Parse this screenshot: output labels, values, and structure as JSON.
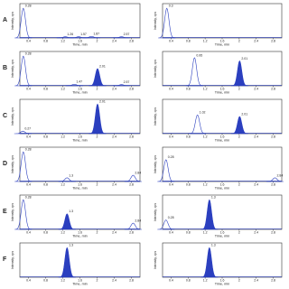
{
  "axis_labels": {
    "x": "Time, min",
    "y": "Intensity, cps"
  },
  "xlim": [
    0.2,
    3.0
  ],
  "xticks": [
    0.4,
    0.8,
    1.2,
    1.6,
    2,
    2.4,
    2.8
  ],
  "ylim": [
    0,
    1.1
  ],
  "color": "#2b3fbf",
  "panels": [
    {
      "label": "A",
      "left": {
        "peaks": [
          {
            "x": 0.28,
            "height": 0.95,
            "filled": false
          },
          {
            "x": 1.26,
            "height": 0.04,
            "filled": false
          },
          {
            "x": 1.57,
            "height": 0.04,
            "filled": false
          },
          {
            "x": 1.87,
            "height": 0.05,
            "filled": false
          },
          {
            "x": 2.57,
            "height": 0.04,
            "filled": false
          }
        ]
      },
      "right": {
        "peaks": [
          {
            "x": 0.3,
            "height": 0.95,
            "filled": false
          }
        ]
      }
    },
    {
      "label": "B",
      "left": {
        "peaks": [
          {
            "x": 0.28,
            "height": 0.95,
            "filled": false
          },
          {
            "x": 1.47,
            "height": 0.05,
            "filled": false
          },
          {
            "x": 2.01,
            "height": 0.55,
            "filled": true
          },
          {
            "x": 2.57,
            "height": 0.04,
            "filled": false
          }
        ]
      },
      "right": {
        "peaks": [
          {
            "x": 0.95,
            "height": 0.9,
            "filled": false
          },
          {
            "x": 2.01,
            "height": 0.8,
            "filled": true
          }
        ]
      }
    },
    {
      "label": "C",
      "left": {
        "peaks": [
          {
            "x": 0.27,
            "height": 0.08,
            "filled": false
          },
          {
            "x": 2.01,
            "height": 0.95,
            "filled": true
          }
        ]
      },
      "right": {
        "peaks": [
          {
            "x": 1.02,
            "height": 0.6,
            "filled": false
          },
          {
            "x": 2.01,
            "height": 0.55,
            "filled": true
          }
        ]
      }
    },
    {
      "label": "D",
      "left": {
        "peaks": [
          {
            "x": 0.28,
            "height": 0.95,
            "filled": false
          },
          {
            "x": 1.3,
            "height": 0.12,
            "filled": false
          },
          {
            "x": 2.84,
            "height": 0.2,
            "filled": false
          }
        ]
      },
      "right": {
        "peaks": [
          {
            "x": 0.28,
            "height": 0.7,
            "filled": false
          },
          {
            "x": 2.84,
            "height": 0.12,
            "filled": false
          }
        ]
      }
    },
    {
      "label": "E",
      "left": {
        "peaks": [
          {
            "x": 0.28,
            "height": 0.95,
            "filled": false
          },
          {
            "x": 1.3,
            "height": 0.5,
            "filled": true
          },
          {
            "x": 2.84,
            "height": 0.2,
            "filled": false
          }
        ]
      },
      "right": {
        "peaks": [
          {
            "x": 0.28,
            "height": 0.3,
            "filled": false
          },
          {
            "x": 1.3,
            "height": 0.95,
            "filled": true
          }
        ]
      }
    },
    {
      "label": "F",
      "left": {
        "peaks": [
          {
            "x": 1.3,
            "height": 0.95,
            "filled": true
          }
        ]
      },
      "right": {
        "peaks": [
          {
            "x": 1.3,
            "height": 0.95,
            "filled": true
          }
        ]
      }
    }
  ]
}
